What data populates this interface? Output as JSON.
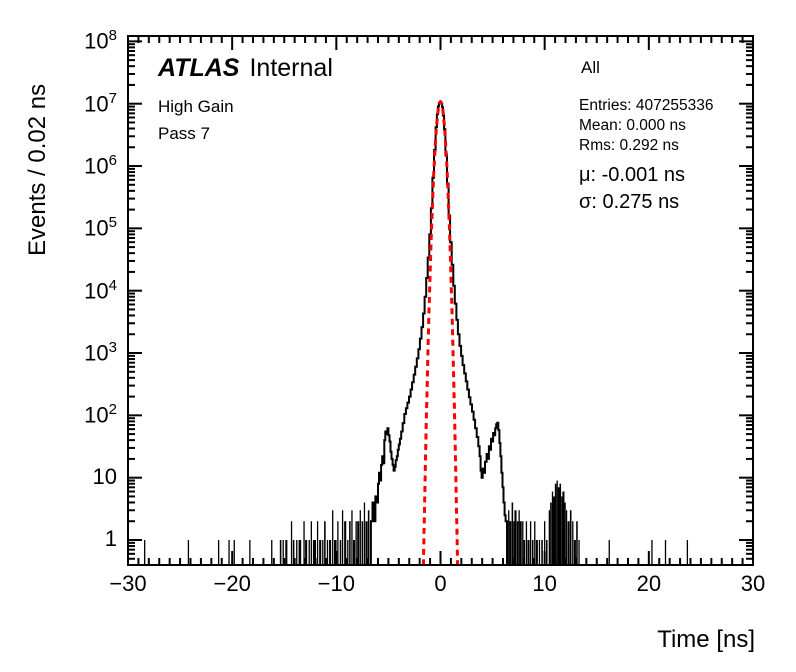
{
  "annotations": {
    "experiment": "ATLAS",
    "experiment_suffix": "Internal",
    "gain": "High Gain",
    "pass": "Pass 7",
    "selection": "All",
    "stats": [
      "Entries: 407255336",
      "Mean: 0.000 ns",
      "Rms: 0.292 ns"
    ],
    "fit_stats": [
      "μ: -0.001 ns",
      "σ: 0.275 ns"
    ],
    "stats_values": {
      "entries": 407255336,
      "mean_ns": 0.0,
      "rms_ns": 0.292,
      "mu_ns": -0.001,
      "sigma_ns": 0.275
    }
  },
  "chart_data": {
    "type": "bar",
    "subtype": "histogram-with-gaussian-fit",
    "xlabel": "Time [ns]",
    "ylabel": "Events / 0.02 ns",
    "bin_width_ns": 0.02,
    "x_range": [
      -30,
      30
    ],
    "y_scale": "log",
    "y_range": [
      0.4,
      123000000
    ],
    "grid": false,
    "x_minor_step": 1,
    "x_major_ticks": [
      {
        "value": -30,
        "label": "−30"
      },
      {
        "value": -20,
        "label": "−20"
      },
      {
        "value": -10,
        "label": "−10"
      },
      {
        "value": 0,
        "label": "0"
      },
      {
        "value": 10,
        "label": "10"
      },
      {
        "value": 20,
        "label": "20"
      },
      {
        "value": 30,
        "label": "30"
      }
    ],
    "y_major_ticks": [
      {
        "value": 1,
        "label": "1"
      },
      {
        "value": 10,
        "label": "10"
      },
      {
        "value": 100,
        "mantissa": "10",
        "exp": "2"
      },
      {
        "value": 1000,
        "mantissa": "10",
        "exp": "3"
      },
      {
        "value": 10000,
        "mantissa": "10",
        "exp": "4"
      },
      {
        "value": 100000,
        "mantissa": "10",
        "exp": "5"
      },
      {
        "value": 1000000,
        "mantissa": "10",
        "exp": "6"
      },
      {
        "value": 10000000,
        "mantissa": "10",
        "exp": "7"
      },
      {
        "value": 100000000,
        "mantissa": "10",
        "exp": "8"
      }
    ],
    "colors": {
      "histogram": "#000000",
      "fit": "#ff0000",
      "frame": "#000000",
      "background": "#ffffff"
    },
    "histogram": {
      "curve": [
        [
          -6.6,
          2
        ],
        [
          -6.45,
          4
        ],
        [
          -6.3,
          2
        ],
        [
          -6.2,
          5
        ],
        [
          -6.05,
          4
        ],
        [
          -5.95,
          8
        ],
        [
          -5.85,
          12
        ],
        [
          -5.75,
          9
        ],
        [
          -5.65,
          16
        ],
        [
          -5.55,
          22
        ],
        [
          -5.45,
          17
        ],
        [
          -5.35,
          40
        ],
        [
          -5.25,
          55
        ],
        [
          -5.15,
          50
        ],
        [
          -5.05,
          62
        ],
        [
          -4.95,
          48
        ],
        [
          -4.85,
          38
        ],
        [
          -4.75,
          26
        ],
        [
          -4.65,
          20
        ],
        [
          -4.55,
          16
        ],
        [
          -4.45,
          13
        ],
        [
          -4.35,
          15
        ],
        [
          -4.25,
          19
        ],
        [
          -4.15,
          22
        ],
        [
          -4.05,
          28
        ],
        [
          -3.95,
          34
        ],
        [
          -3.85,
          42
        ],
        [
          -3.7,
          55
        ],
        [
          -3.55,
          75
        ],
        [
          -3.4,
          105
        ],
        [
          -3.25,
          130
        ],
        [
          -3.1,
          160
        ],
        [
          -2.95,
          200
        ],
        [
          -2.8,
          260
        ],
        [
          -2.65,
          340
        ],
        [
          -2.5,
          450
        ],
        [
          -2.35,
          600
        ],
        [
          -2.2,
          820
        ],
        [
          -2.05,
          1150
        ],
        [
          -1.9,
          1700
        ],
        [
          -1.75,
          2600
        ],
        [
          -1.6,
          4300
        ],
        [
          -1.45,
          8000
        ],
        [
          -1.3,
          16000
        ],
        [
          -1.15,
          34000
        ],
        [
          -1.0,
          80000
        ],
        [
          -0.85,
          210000
        ],
        [
          -0.7,
          650000
        ],
        [
          -0.55,
          1800000
        ],
        [
          -0.4,
          4200000
        ],
        [
          -0.3,
          6800000
        ],
        [
          -0.2,
          9000000
        ],
        [
          -0.1,
          10300000
        ],
        [
          0,
          10500000
        ],
        [
          0.1,
          10200000
        ],
        [
          0.2,
          8800000
        ],
        [
          0.3,
          6400000
        ],
        [
          0.4,
          3900000
        ],
        [
          0.55,
          1500000
        ],
        [
          0.7,
          520000
        ],
        [
          0.85,
          160000
        ],
        [
          1.0,
          60000
        ],
        [
          1.15,
          26000
        ],
        [
          1.3,
          12000
        ],
        [
          1.45,
          6200
        ],
        [
          1.6,
          3400
        ],
        [
          1.75,
          2000
        ],
        [
          1.9,
          1300
        ],
        [
          2.05,
          900
        ],
        [
          2.2,
          640
        ],
        [
          2.35,
          470
        ],
        [
          2.5,
          350
        ],
        [
          2.65,
          260
        ],
        [
          2.8,
          195
        ],
        [
          2.95,
          150
        ],
        [
          3.1,
          115
        ],
        [
          3.25,
          85
        ],
        [
          3.4,
          62
        ],
        [
          3.55,
          45
        ],
        [
          3.7,
          32
        ],
        [
          3.8,
          22
        ],
        [
          3.9,
          13
        ],
        [
          4.0,
          10
        ],
        [
          4.1,
          14
        ],
        [
          4.2,
          12
        ],
        [
          4.35,
          18
        ],
        [
          4.5,
          24
        ],
        [
          4.6,
          20
        ],
        [
          4.7,
          32
        ],
        [
          4.8,
          28
        ],
        [
          4.9,
          42
        ],
        [
          5.0,
          38
        ],
        [
          5.1,
          52
        ],
        [
          5.2,
          48
        ],
        [
          5.3,
          62
        ],
        [
          5.4,
          72
        ],
        [
          5.5,
          76
        ],
        [
          5.6,
          58
        ],
        [
          5.7,
          36
        ],
        [
          5.8,
          22
        ],
        [
          5.9,
          12
        ],
        [
          6.0,
          7
        ],
        [
          6.1,
          4
        ],
        [
          6.2,
          2.5
        ],
        [
          6.3,
          2
        ]
      ],
      "noise_bars": [
        [
          -28.4,
          0.1,
          1
        ],
        [
          -24.2,
          0.1,
          1
        ],
        [
          -21.3,
          0.1,
          1
        ],
        [
          -20.3,
          0.1,
          1
        ],
        [
          -19.8,
          0.1,
          1
        ],
        [
          -18.3,
          0.1,
          1
        ],
        [
          -16.2,
          0.1,
          1
        ],
        [
          -15.35,
          0.15,
          1
        ],
        [
          -15.1,
          0.1,
          1
        ],
        [
          -14.8,
          0.2,
          1
        ],
        [
          -14.3,
          0.1,
          2
        ],
        [
          -14.1,
          0.15,
          1
        ],
        [
          -13.8,
          0.1,
          1
        ],
        [
          -13.5,
          0.25,
          1
        ],
        [
          -13.1,
          0.1,
          2
        ],
        [
          -12.9,
          0.2,
          1
        ],
        [
          -12.6,
          0.1,
          1
        ],
        [
          -12.4,
          0.1,
          2
        ],
        [
          -12.1,
          0.3,
          1
        ],
        [
          -11.8,
          0.1,
          2
        ],
        [
          -11.55,
          0.2,
          1
        ],
        [
          -11.3,
          0.1,
          1
        ],
        [
          -11.1,
          0.15,
          2
        ],
        [
          -10.85,
          0.1,
          1
        ],
        [
          -10.6,
          0.2,
          1
        ],
        [
          -10.35,
          0.1,
          3
        ],
        [
          -10.1,
          0.25,
          1
        ],
        [
          -9.85,
          0.1,
          2
        ],
        [
          -9.6,
          0.15,
          1
        ],
        [
          -9.4,
          0.1,
          3
        ],
        [
          -9.15,
          0.2,
          2
        ],
        [
          -8.9,
          0.1,
          1
        ],
        [
          -8.7,
          0.15,
          2
        ],
        [
          -8.5,
          0.1,
          3
        ],
        [
          -8.3,
          0.2,
          1
        ],
        [
          -8.1,
          0.1,
          2
        ],
        [
          -7.9,
          0.2,
          2
        ],
        [
          -7.7,
          0.1,
          3
        ],
        [
          -7.5,
          0.15,
          2
        ],
        [
          -7.3,
          0.1,
          4
        ],
        [
          -7.1,
          0.2,
          2
        ],
        [
          -6.9,
          0.15,
          3
        ],
        [
          -6.7,
          0.1,
          2
        ],
        [
          6.4,
          0.15,
          2
        ],
        [
          6.55,
          0.1,
          3
        ],
        [
          6.7,
          0.2,
          2
        ],
        [
          6.9,
          0.15,
          4
        ],
        [
          7.05,
          0.1,
          2
        ],
        [
          7.2,
          0.2,
          3
        ],
        [
          7.4,
          0.15,
          2
        ],
        [
          7.55,
          0.1,
          3
        ],
        [
          7.7,
          0.2,
          2
        ],
        [
          7.9,
          0.1,
          2
        ],
        [
          8.05,
          0.15,
          1
        ],
        [
          8.25,
          0.1,
          2
        ],
        [
          8.45,
          0.2,
          1
        ],
        [
          8.65,
          0.1,
          2
        ],
        [
          8.85,
          0.15,
          1
        ],
        [
          9.05,
          0.1,
          2
        ],
        [
          9.25,
          0.2,
          1
        ],
        [
          9.5,
          0.1,
          1
        ],
        [
          9.75,
          0.15,
          1
        ],
        [
          10.0,
          0.1,
          2
        ],
        [
          10.2,
          0.15,
          1
        ],
        [
          10.45,
          0.1,
          3
        ],
        [
          10.6,
          0.15,
          4
        ],
        [
          10.75,
          0.1,
          6
        ],
        [
          10.9,
          0.2,
          5
        ],
        [
          11.05,
          0.15,
          8
        ],
        [
          11.2,
          0.1,
          9
        ],
        [
          11.35,
          0.2,
          7
        ],
        [
          11.5,
          0.15,
          8
        ],
        [
          11.65,
          0.1,
          5
        ],
        [
          11.8,
          0.2,
          6
        ],
        [
          11.95,
          0.15,
          4
        ],
        [
          12.1,
          0.1,
          3
        ],
        [
          12.3,
          0.2,
          2
        ],
        [
          12.5,
          0.15,
          3
        ],
        [
          12.7,
          0.1,
          2
        ],
        [
          12.9,
          0.2,
          1
        ],
        [
          13.1,
          0.15,
          2
        ],
        [
          13.3,
          0.1,
          1
        ],
        [
          16.2,
          0.1,
          1
        ],
        [
          20.3,
          0.1,
          1
        ],
        [
          21.6,
          0.1,
          1
        ],
        [
          23.7,
          0.1,
          1
        ]
      ]
    },
    "fit": {
      "shape": "gaussian",
      "style": "dashed",
      "amplitude": 10800000,
      "mean": -0.001,
      "sigma": 0.28,
      "draw_range": [
        -1.64,
        1.64
      ]
    }
  }
}
